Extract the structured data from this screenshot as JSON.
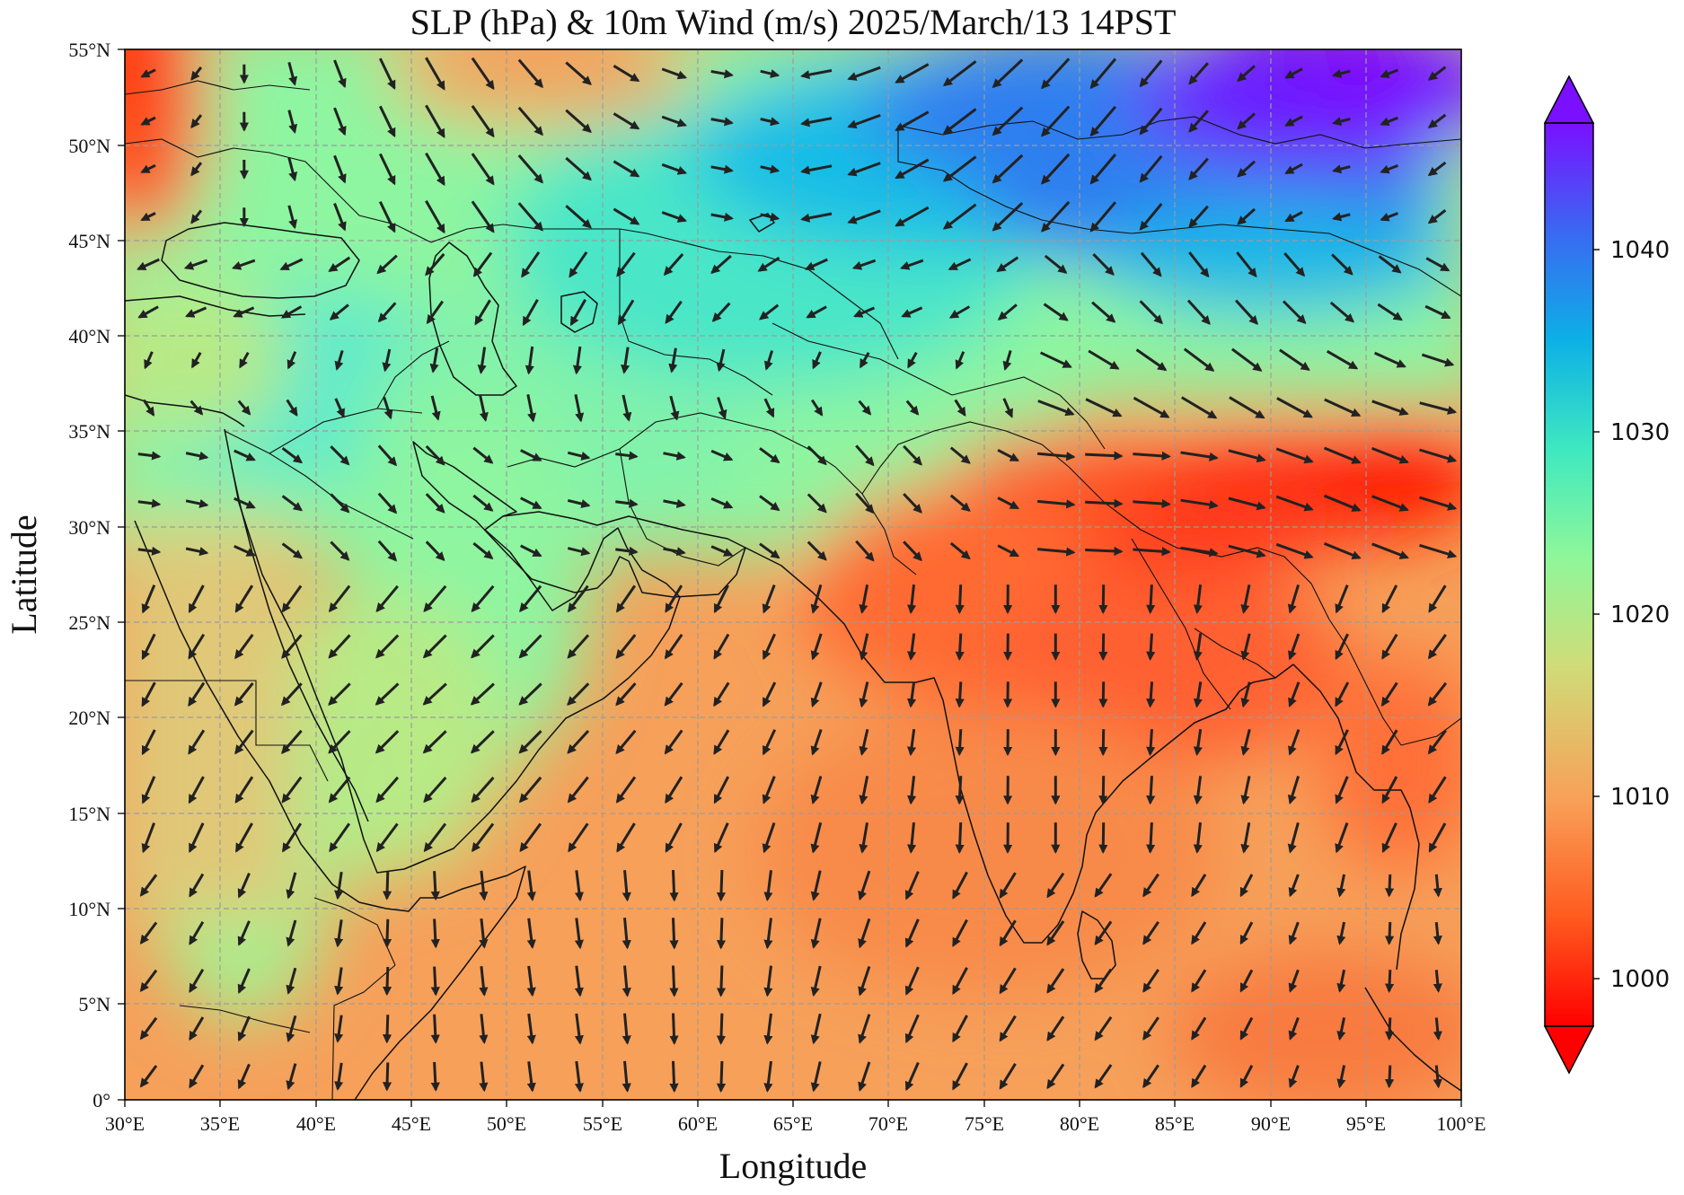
{
  "title": "SLP (hPa) & 10m Wind (m/s)  2025/March/13  14PST",
  "xlabel": "Longitude",
  "ylabel": "Latitude",
  "x_ticks": [
    "30°E",
    "35°E",
    "40°E",
    "45°E",
    "50°E",
    "55°E",
    "60°E",
    "65°E",
    "70°E",
    "75°E",
    "80°E",
    "85°E",
    "90°E",
    "95°E",
    "100°E"
  ],
  "y_ticks": [
    "0°",
    "5°N",
    "10°N",
    "15°N",
    "20°N",
    "25°N",
    "30°N",
    "35°N",
    "40°N",
    "45°N",
    "50°N",
    "55°N"
  ],
  "colorbar": {
    "ticks": [
      "1000",
      "1010",
      "1020",
      "1030",
      "1040"
    ],
    "colormap": "rainbow (red=low, violet=high)",
    "extend": "both"
  },
  "colors": {
    "low": "#ff1a00",
    "mid_low": "#f89a58",
    "mid": "#8ef79a",
    "mid_high": "#2ec8e0",
    "high": "#7a10ff",
    "arrow": "#222222",
    "grid": "#9a9a9a"
  },
  "chart_data": {
    "type": "map",
    "field": "sea level pressure (hPa) shaded, 10m wind vectors",
    "xlim": [
      30,
      100
    ],
    "ylim": [
      0,
      55
    ],
    "clim": [
      1000,
      1040
    ],
    "grid": true,
    "pressure_centers": [
      {
        "kind": "high",
        "lon": 96,
        "lat": 53,
        "value": 1045
      },
      {
        "kind": "high",
        "lon": 82,
        "lat": 50,
        "value": 1038
      },
      {
        "kind": "low",
        "lon": 97,
        "lat": 32,
        "value": 998
      },
      {
        "kind": "low",
        "lon": 30,
        "lat": 50,
        "value": 1004
      },
      {
        "kind": "low",
        "lon": 75,
        "lat": 27,
        "value": 1005
      }
    ]
  }
}
